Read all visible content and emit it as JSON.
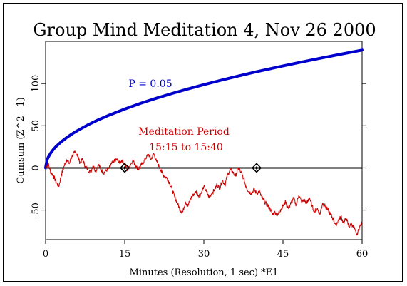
{
  "chart_data": {
    "type": "line",
    "title": "Group Mind Meditation 4, Nov 26 2000",
    "xlabel": "Minutes (Resolution, 1 sec)   *E1",
    "ylabel": "Cumsum (Z^2 - 1)",
    "xlim": [
      0,
      60
    ],
    "ylim": [
      -85,
      150
    ],
    "x_ticks": [
      0,
      15,
      30,
      45,
      60
    ],
    "y_ticks": [
      -50,
      0,
      50,
      100
    ],
    "annotations": [
      {
        "text": "P = 0.05",
        "color": "#0000cc"
      },
      {
        "text": "Meditation Period",
        "color": "#cc0000"
      },
      {
        "text": "15:15 to 15:40",
        "color": "#cc0000"
      }
    ],
    "markers": [
      {
        "x": 15,
        "y": 0
      },
      {
        "x": 40,
        "y": 0
      }
    ],
    "series": [
      {
        "color": "#cc0000",
        "x": [
          0,
          0.5,
          1,
          1.5,
          2,
          2.5,
          3,
          3.5,
          4,
          4.5,
          5,
          5.5,
          6,
          6.5,
          7,
          7.5,
          8,
          8.5,
          9,
          9.5,
          10,
          10.5,
          11,
          11.5,
          12,
          12.5,
          13,
          13.5,
          14,
          14.5,
          15,
          15.5,
          16,
          16.5,
          17,
          17.5,
          18,
          18.5,
          19,
          19.5,
          20,
          20.5,
          21,
          21.5,
          22,
          22.5,
          23,
          23.5,
          24,
          24.5,
          25,
          25.5,
          26,
          26.5,
          27,
          27.5,
          28,
          28.5,
          29,
          29.5,
          30,
          30.5,
          31,
          31.5,
          32,
          32.5,
          33,
          33.5,
          34,
          34.5,
          35,
          35.5,
          36,
          36.5,
          37,
          37.5,
          38,
          38.5,
          39,
          39.5,
          40,
          40.5,
          41,
          41.5,
          42,
          42.5,
          43,
          43.5,
          44,
          44.5,
          45,
          45.5,
          46,
          46.5,
          47,
          47.5,
          48,
          48.5,
          49,
          49.5,
          50,
          50.5,
          51,
          51.5,
          52,
          52.5,
          53,
          53.5,
          54,
          54.5,
          55,
          55.5,
          56,
          56.5,
          57,
          57.5,
          58,
          58.5,
          59,
          59.5,
          60
        ],
        "y": [
          0,
          4,
          -5,
          -10,
          -17,
          -22,
          -8,
          2,
          10,
          5,
          14,
          18,
          16,
          6,
          10,
          2,
          -2,
          -5,
          3,
          -4,
          4,
          -2,
          -6,
          -3,
          -1,
          5,
          8,
          10,
          6,
          9,
          4,
          -3,
          3,
          9,
          4,
          -2,
          2,
          6,
          12,
          16,
          10,
          17,
          8,
          2,
          -5,
          -10,
          -12,
          -18,
          -26,
          -35,
          -42,
          -50,
          -52,
          -40,
          -45,
          -36,
          -32,
          -28,
          -33,
          -30,
          -22,
          -28,
          -35,
          -30,
          -26,
          -20,
          -24,
          -15,
          -20,
          -8,
          -2,
          -5,
          -10,
          0,
          -5,
          -12,
          -22,
          -28,
          -30,
          -26,
          -30,
          -28,
          -35,
          -40,
          -44,
          -48,
          -55,
          -52,
          -56,
          -50,
          -45,
          -40,
          -48,
          -42,
          -36,
          -44,
          -32,
          -40,
          -38,
          -42,
          -35,
          -45,
          -52,
          -48,
          -55,
          -42,
          -45,
          -50,
          -55,
          -60,
          -68,
          -62,
          -58,
          -65,
          -60,
          -70,
          -66,
          -72,
          -80,
          -70,
          -65
        ]
      }
    ],
    "reference_line": {
      "name": "P = 0.05",
      "color": "#0000cc",
      "formula": "1.645*sqrt(2*N)",
      "x": [
        0,
        0.25,
        0.5,
        1,
        1.5,
        2,
        3,
        4,
        5,
        6,
        8,
        10,
        12,
        15,
        18,
        21,
        24,
        27,
        30,
        33,
        36,
        40,
        44,
        48,
        52,
        56,
        60
      ],
      "y": [
        0,
        9.0,
        12.7,
        18.0,
        22.1,
        25.5,
        31.2,
        36.0,
        40.3,
        44.1,
        51.0,
        57.0,
        62.4,
        69.8,
        76.5,
        82.6,
        88.3,
        93.6,
        98.7,
        103.5,
        108.1,
        114.0,
        119.5,
        124.8,
        129.9,
        134.8,
        139.6
      ]
    }
  }
}
